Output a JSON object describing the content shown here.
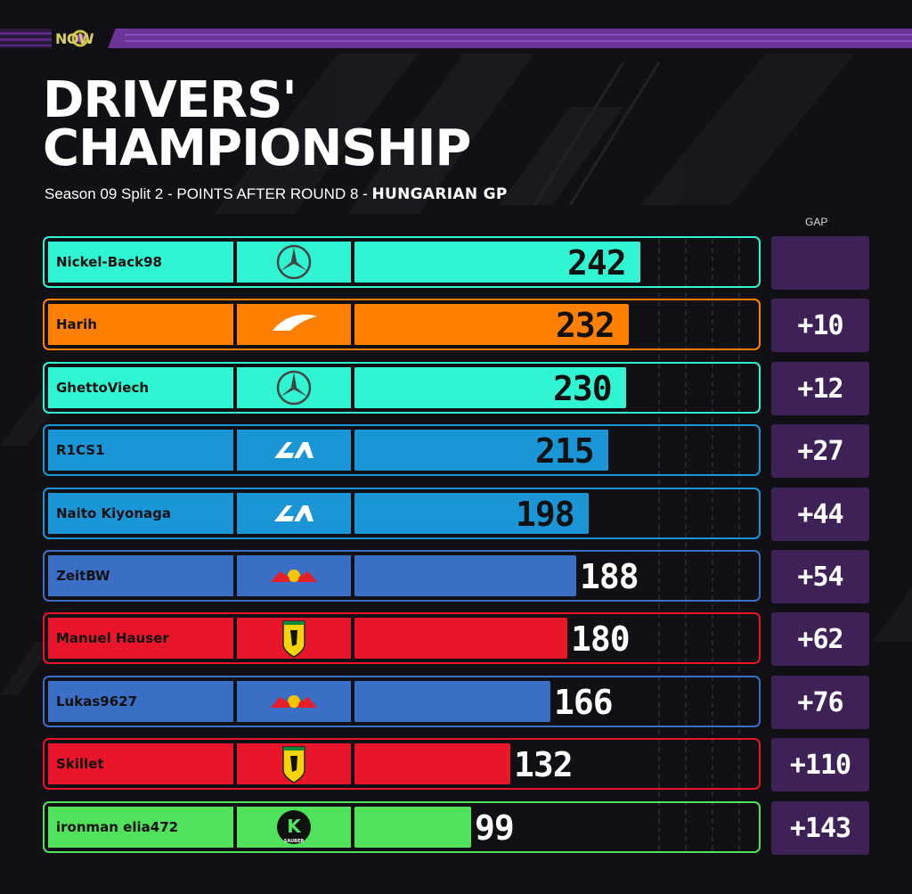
{
  "brand": {
    "logo_text": "NOW"
  },
  "header": {
    "title_line1": "DRIVERS'",
    "title_line2": "CHAMPIONSHIP",
    "subtitle": "Season 09 Split 2 - POINTS AFTER ROUND 8 - ",
    "subtitle_bold": "HUNGARIAN GP",
    "gap_label": "GAP"
  },
  "colors": {
    "background": "#111014",
    "accent_purple": "#5b2a82",
    "gap_box": "#3e2257",
    "mercedes": "#2ff5d2",
    "mclaren": "#ff8000",
    "alpine": "#1a96d6",
    "redbull": "#3b6fc6",
    "ferrari": "#e8152b",
    "sauber": "#50e25a"
  },
  "chart_data": {
    "type": "bar",
    "title": "DRIVERS' CHAMPIONSHIP",
    "subtitle": "Season 09 Split 2 - POINTS AFTER ROUND 8 - HUNGARIAN GP",
    "categories": [
      "Nickel-Back98",
      "Harih",
      "GhettoViech",
      "R1CS1",
      "Naito Kiyonaga",
      "ZeitBW",
      "Manuel Hauser",
      "Lukas9627",
      "Skillet",
      "ironman elia472"
    ],
    "values": [
      242,
      232,
      230,
      215,
      198,
      188,
      180,
      166,
      132,
      99
    ],
    "xlim": [
      0,
      340
    ],
    "drivers": [
      {
        "name": "Nickel-Back98",
        "team_icon": "mercedes-logo-icon",
        "points": 242,
        "gap": "",
        "color": "#2ff5d2",
        "label_inside": true
      },
      {
        "name": "Harih",
        "team_icon": "mclaren-logo-icon",
        "points": 232,
        "gap": "+10",
        "color": "#ff8000",
        "label_inside": true
      },
      {
        "name": "GhettoViech",
        "team_icon": "mercedes-logo-icon",
        "points": 230,
        "gap": "+12",
        "color": "#2ff5d2",
        "label_inside": true
      },
      {
        "name": "R1CS1",
        "team_icon": "alpine-logo-icon",
        "points": 215,
        "gap": "+27",
        "color": "#1a96d6",
        "label_inside": true
      },
      {
        "name": "Naito Kiyonaga",
        "team_icon": "alpine-logo-icon",
        "points": 198,
        "gap": "+44",
        "color": "#1a96d6",
        "label_inside": true
      },
      {
        "name": "ZeitBW",
        "team_icon": "redbull-logo-icon",
        "points": 188,
        "gap": "+54",
        "color": "#3b6fc6",
        "label_inside": false
      },
      {
        "name": "Manuel Hauser",
        "team_icon": "ferrari-logo-icon",
        "points": 180,
        "gap": "+62",
        "color": "#e8152b",
        "label_inside": false
      },
      {
        "name": "Lukas9627",
        "team_icon": "redbull-logo-icon",
        "points": 166,
        "gap": "+76",
        "color": "#3b6fc6",
        "label_inside": false
      },
      {
        "name": "Skillet",
        "team_icon": "ferrari-logo-icon",
        "points": 132,
        "gap": "+110",
        "color": "#e8152b",
        "label_inside": false
      },
      {
        "name": "ironman elia472",
        "team_icon": "sauber-logo-icon",
        "points": 99,
        "gap": "+143",
        "color": "#50e25a",
        "label_inside": false
      }
    ],
    "sauber_badge_text": "SAUBER",
    "sauber_badge_letter": "K",
    "grid": true
  }
}
